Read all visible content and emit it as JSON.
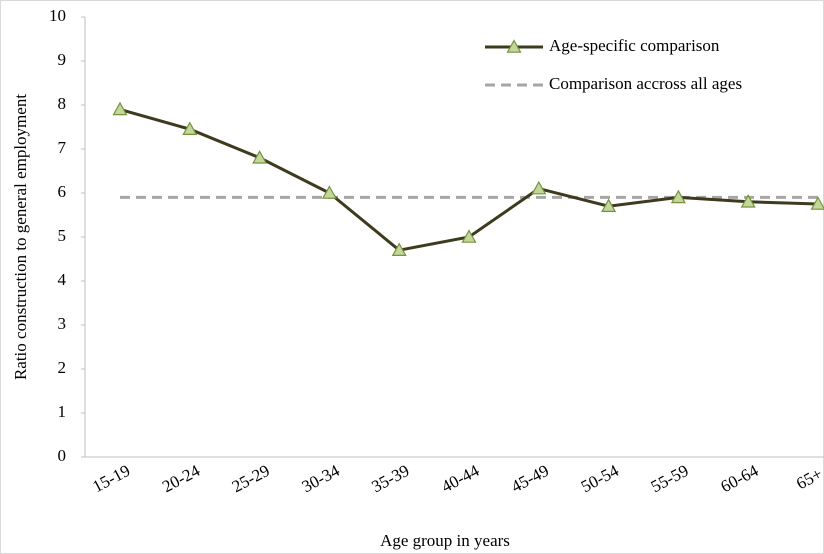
{
  "chart_data": {
    "type": "line",
    "x_label": "Age group in years",
    "y_label": "Ratio construction to general employment",
    "categories": [
      "15-19",
      "20-24",
      "25-29",
      "30-34",
      "35-39",
      "40-44",
      "45-49",
      "50-54",
      "55-59",
      "60-64",
      "65+"
    ],
    "series": [
      {
        "name": "Age-specific comparison",
        "color": "#3d3a1e",
        "marker_color": "#c4d79b",
        "marker": "triangle",
        "dashed": false,
        "values": [
          7.9,
          7.45,
          6.8,
          6.0,
          4.7,
          5.0,
          6.1,
          5.7,
          5.9,
          5.8,
          5.75
        ]
      },
      {
        "name": "Comparison accross all ages",
        "color": "#a6a6a6",
        "marker": null,
        "dashed": true,
        "values": [
          5.9,
          5.9,
          5.9,
          5.9,
          5.9,
          5.9,
          5.9,
          5.9,
          5.9,
          5.9,
          5.9
        ]
      }
    ],
    "ylim": [
      0,
      10
    ],
    "yticks": [
      0,
      1,
      2,
      3,
      4,
      5,
      6,
      7,
      8,
      9,
      10
    ],
    "grid": false,
    "legend": "upper right"
  }
}
